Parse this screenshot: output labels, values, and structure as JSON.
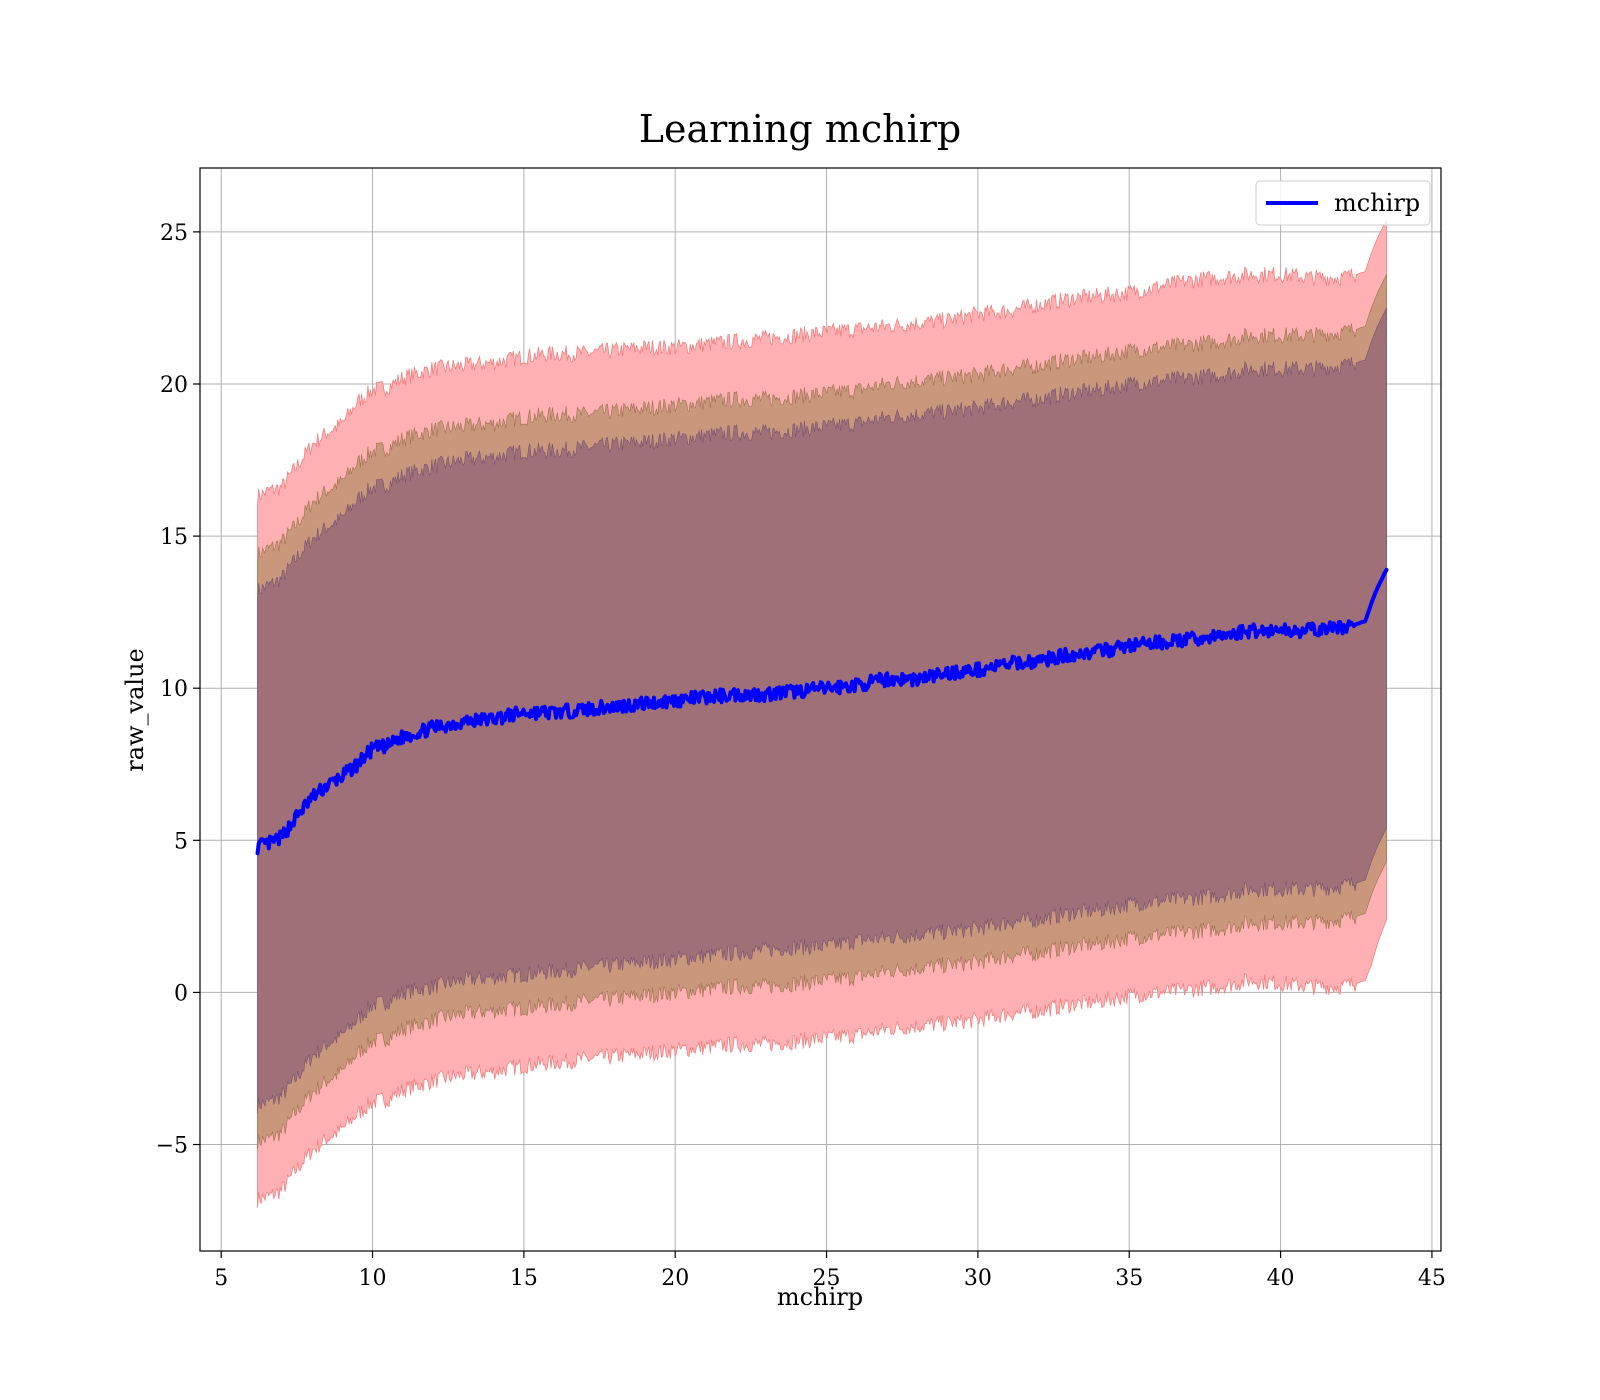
{
  "chart_data": {
    "type": "line",
    "title": "Learning mchirp",
    "xlabel": "mchirp",
    "ylabel": "raw_value",
    "xlim": [
      4.3,
      45.3
    ],
    "ylim": [
      -8.5,
      27.1
    ],
    "xticks": [
      5,
      10,
      15,
      20,
      25,
      30,
      35,
      40,
      45
    ],
    "yticks": [
      -5,
      0,
      5,
      10,
      15,
      20,
      25
    ],
    "ytick_labels": [
      "−5",
      "0",
      "5",
      "10",
      "15",
      "20",
      "25"
    ],
    "grid": true,
    "legend": {
      "position": "top-right",
      "entries": [
        "mchirp"
      ]
    },
    "colors": {
      "line": "#0000ff",
      "band_outer": "#ffb0b3",
      "band_middle": "#c8977c",
      "band_inner": "#a07079",
      "grid": "#b0b0b0"
    },
    "series": [
      {
        "name": "mchirp",
        "x": [
          6.2,
          6.6,
          7.0,
          7.5,
          8.0,
          8.5,
          9.0,
          9.5,
          10.0,
          10.5,
          11.0,
          12.0,
          13.0,
          14.0,
          15.0,
          16.0,
          17.0,
          18.0,
          19.0,
          20.0,
          21.0,
          22.0,
          23.0,
          24.0,
          25.0,
          26.0,
          27.0,
          28.0,
          29.0,
          30.0,
          31.0,
          32.0,
          33.0,
          34.0,
          35.0,
          36.0,
          37.0,
          38.0,
          39.0,
          40.0,
          41.0,
          42.0,
          42.5,
          42.8,
          43.0,
          43.2,
          43.5
        ],
        "y": [
          4.8,
          4.9,
          5.1,
          5.8,
          6.4,
          6.8,
          7.1,
          7.5,
          8.0,
          8.1,
          8.4,
          8.7,
          8.9,
          9.0,
          9.2,
          9.2,
          9.3,
          9.4,
          9.5,
          9.6,
          9.7,
          9.8,
          9.8,
          9.9,
          10.0,
          10.1,
          10.3,
          10.3,
          10.5,
          10.6,
          10.8,
          10.9,
          11.1,
          11.2,
          11.4,
          11.5,
          11.6,
          11.7,
          11.9,
          11.9,
          11.9,
          12.0,
          12.1,
          12.2,
          12.8,
          13.3,
          13.9
        ],
        "band_outer_upper": [
          16.3,
          16.5,
          16.6,
          17.3,
          18.0,
          18.4,
          18.7,
          19.4,
          19.8,
          19.9,
          20.2,
          20.5,
          20.6,
          20.7,
          20.9,
          21.0,
          21.0,
          21.1,
          21.2,
          21.2,
          21.3,
          21.4,
          21.5,
          21.6,
          21.7,
          21.8,
          21.9,
          22.0,
          22.1,
          22.3,
          22.4,
          22.6,
          22.8,
          22.9,
          23.0,
          23.2,
          23.4,
          23.5,
          23.6,
          23.6,
          23.5,
          23.5,
          23.6,
          23.7,
          24.3,
          24.8,
          25.4
        ],
        "band_outer_lower": [
          -6.8,
          -6.7,
          -6.5,
          -5.8,
          -5.2,
          -4.8,
          -4.5,
          -4.0,
          -3.6,
          -3.5,
          -3.2,
          -2.9,
          -2.7,
          -2.6,
          -2.4,
          -2.3,
          -2.2,
          -2.1,
          -2.0,
          -1.9,
          -1.8,
          -1.7,
          -1.7,
          -1.6,
          -1.5,
          -1.4,
          -1.2,
          -1.1,
          -1.0,
          -0.9,
          -0.7,
          -0.6,
          -0.4,
          -0.3,
          -0.1,
          0.0,
          0.1,
          0.2,
          0.4,
          0.3,
          0.2,
          0.2,
          0.3,
          0.4,
          0.9,
          1.6,
          2.4
        ],
        "band_middle_upper": [
          14.4,
          14.6,
          14.8,
          15.4,
          16.1,
          16.5,
          16.8,
          17.4,
          17.8,
          17.9,
          18.2,
          18.5,
          18.6,
          18.7,
          18.9,
          19.0,
          19.0,
          19.1,
          19.2,
          19.3,
          19.4,
          19.5,
          19.5,
          19.6,
          19.7,
          19.8,
          20.0,
          20.1,
          20.2,
          20.3,
          20.5,
          20.6,
          20.8,
          20.9,
          21.1,
          21.2,
          21.3,
          21.4,
          21.6,
          21.6,
          21.6,
          21.7,
          21.8,
          21.9,
          22.5,
          23.0,
          23.6
        ],
        "band_middle_lower": [
          -4.9,
          -4.8,
          -4.6,
          -3.9,
          -3.3,
          -2.9,
          -2.6,
          -2.0,
          -1.6,
          -1.5,
          -1.2,
          -0.9,
          -0.7,
          -0.6,
          -0.5,
          -0.4,
          -0.3,
          -0.2,
          -0.1,
          0.0,
          0.1,
          0.2,
          0.2,
          0.3,
          0.4,
          0.5,
          0.7,
          0.8,
          0.9,
          1.0,
          1.2,
          1.3,
          1.5,
          1.6,
          1.8,
          1.9,
          2.0,
          2.1,
          2.3,
          2.3,
          2.3,
          2.4,
          2.5,
          2.6,
          3.2,
          3.7,
          4.3
        ],
        "band_inner_upper": [
          13.2,
          13.4,
          13.6,
          14.3,
          14.9,
          15.3,
          15.6,
          16.2,
          16.6,
          16.7,
          17.0,
          17.3,
          17.5,
          17.6,
          17.8,
          17.8,
          17.9,
          18.0,
          18.1,
          18.2,
          18.3,
          18.4,
          18.4,
          18.5,
          18.6,
          18.7,
          18.9,
          19.0,
          19.1,
          19.2,
          19.4,
          19.5,
          19.7,
          19.8,
          20.0,
          20.1,
          20.2,
          20.3,
          20.5,
          20.5,
          20.5,
          20.6,
          20.7,
          20.8,
          21.4,
          21.9,
          22.5
        ],
        "band_inner_lower": [
          -3.7,
          -3.6,
          -3.4,
          -2.8,
          -2.1,
          -1.7,
          -1.4,
          -0.9,
          -0.4,
          -0.3,
          0.0,
          0.2,
          0.4,
          0.5,
          0.6,
          0.7,
          0.8,
          0.9,
          1.0,
          1.1,
          1.2,
          1.3,
          1.4,
          1.5,
          1.5,
          1.7,
          1.8,
          1.9,
          2.0,
          2.1,
          2.3,
          2.4,
          2.6,
          2.7,
          2.9,
          3.0,
          3.1,
          3.2,
          3.4,
          3.4,
          3.4,
          3.5,
          3.6,
          3.7,
          4.3,
          4.8,
          5.4
        ]
      }
    ]
  }
}
